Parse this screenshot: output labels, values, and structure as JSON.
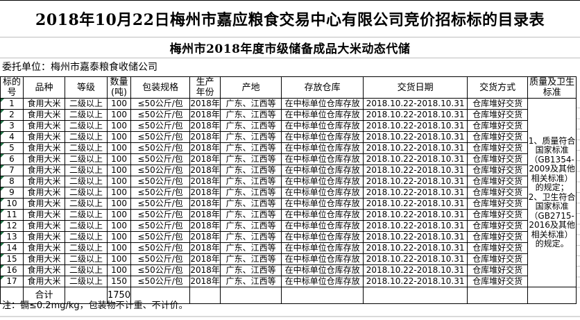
{
  "title": "2018年10月22日梅州市嘉应粮食交易中心有限公司竞价招标标的目录表",
  "subtitle": "梅州市2018年度市级储备成品大米动态代储",
  "client": "委托单位：梅州市嘉泰粮食收储公司",
  "table": {
    "headers": [
      "标的\n号",
      "品种",
      "等级",
      "数量\n(吨)",
      "包装规格",
      "生产\n年份",
      "产地",
      "存放仓库",
      "交货日期",
      "交货方式",
      "质量及卫生\n标准"
    ],
    "rows": [
      {
        "no": "1",
        "variety": "食用大米",
        "grade": "二级以上",
        "quantity": "100",
        "packaging": "≤50公斤/包",
        "year": "2018年",
        "origin": "广东、江西等",
        "warehouse": "在中标单位仓库存放",
        "delivery_date": "2018.10.22-2018.10.31",
        "delivery_method": "仓库堆好交货"
      },
      {
        "no": "2",
        "variety": "食用大米",
        "grade": "二级以上",
        "quantity": "100",
        "packaging": "≤50公斤/包",
        "year": "2018年",
        "origin": "广东、江西等",
        "warehouse": "在中标单位仓库存放",
        "delivery_date": "2018.10.22-2018.10.31",
        "delivery_method": "仓库堆好交货"
      },
      {
        "no": "3",
        "variety": "食用大米",
        "grade": "二级以上",
        "quantity": "100",
        "packaging": "≤50公斤/包",
        "year": "2018年",
        "origin": "广东、江西等",
        "warehouse": "在中标单位仓库存放",
        "delivery_date": "2018.10.22-2018.10.31",
        "delivery_method": "仓库堆好交货"
      },
      {
        "no": "4",
        "variety": "食用大米",
        "grade": "二级以上",
        "quantity": "100",
        "packaging": "≤50公斤/包",
        "year": "2018年",
        "origin": "广东、江西等",
        "warehouse": "在中标单位仓库存放",
        "delivery_date": "2018.10.22-2018.10.31",
        "delivery_method": "仓库堆好交货"
      },
      {
        "no": "5",
        "variety": "食用大米",
        "grade": "二级以上",
        "quantity": "100",
        "packaging": "≤50公斤/包",
        "year": "2018年",
        "origin": "广东、江西等",
        "warehouse": "在中标单位仓库存放",
        "delivery_date": "2018.10.22-2018.10.31",
        "delivery_method": "仓库堆好交货"
      },
      {
        "no": "6",
        "variety": "食用大米",
        "grade": "二级以上",
        "quantity": "100",
        "packaging": "≤50公斤/包",
        "year": "2018年",
        "origin": "广东、江西等",
        "warehouse": "在中标单位仓库存放",
        "delivery_date": "2018.10.22-2018.10.31",
        "delivery_method": "仓库堆好交货"
      },
      {
        "no": "7",
        "variety": "食用大米",
        "grade": "二级以上",
        "quantity": "100",
        "packaging": "≤50公斤/包",
        "year": "2018年",
        "origin": "广东、江西等",
        "warehouse": "在中标单位仓库存放",
        "delivery_date": "2018.10.22-2018.10.31",
        "delivery_method": "仓库堆好交货"
      },
      {
        "no": "8",
        "variety": "食用大米",
        "grade": "二级以上",
        "quantity": "100",
        "packaging": "≤50公斤/包",
        "year": "2018年",
        "origin": "广东、江西等",
        "warehouse": "在中标单位仓库存放",
        "delivery_date": "2018.10.22-2018.10.31",
        "delivery_method": "仓库堆好交货"
      },
      {
        "no": "9",
        "variety": "食用大米",
        "grade": "二级以上",
        "quantity": "100",
        "packaging": "≤50公斤/包",
        "year": "2018年",
        "origin": "广东、江西等",
        "warehouse": "在中标单位仓库存放",
        "delivery_date": "2018.10.22-2018.10.31",
        "delivery_method": "仓库堆好交货"
      },
      {
        "no": "10",
        "variety": "食用大米",
        "grade": "二级以上",
        "quantity": "100",
        "packaging": "≤50公斤/包",
        "year": "2018年",
        "origin": "广东、江西等",
        "warehouse": "在中标单位仓库存放",
        "delivery_date": "2018.10.22-2018.10.31",
        "delivery_method": "仓库堆好交货"
      },
      {
        "no": "11",
        "variety": "食用大米",
        "grade": "二级以上",
        "quantity": "100",
        "packaging": "≤50公斤/包",
        "year": "2018年",
        "origin": "广东、江西等",
        "warehouse": "在中标单位仓库存放",
        "delivery_date": "2018.10.22-2018.10.31",
        "delivery_method": "仓库堆好交货"
      },
      {
        "no": "12",
        "variety": "食用大米",
        "grade": "二级以上",
        "quantity": "100",
        "packaging": "≤50公斤/包",
        "year": "2018年",
        "origin": "广东、江西等",
        "warehouse": "在中标单位仓库存放",
        "delivery_date": "2018.10.22-2018.10.31",
        "delivery_method": "仓库堆好交货"
      },
      {
        "no": "13",
        "variety": "食用大米",
        "grade": "二级以上",
        "quantity": "100",
        "packaging": "≤50公斤/包",
        "year": "2018年",
        "origin": "广东、江西等",
        "warehouse": "在中标单位仓库存放",
        "delivery_date": "2018.10.22-2018.10.31",
        "delivery_method": "仓库堆好交货"
      },
      {
        "no": "14",
        "variety": "食用大米",
        "grade": "二级以上",
        "quantity": "100",
        "packaging": "≤50公斤/包",
        "year": "2018年",
        "origin": "广东、江西等",
        "warehouse": "在中标单位仓库存放",
        "delivery_date": "2018.10.22-2018.10.31",
        "delivery_method": "仓库堆好交货"
      },
      {
        "no": "15",
        "variety": "食用大米",
        "grade": "二级以上",
        "quantity": "100",
        "packaging": "≤50公斤/包",
        "year": "2018年",
        "origin": "广东、江西等",
        "warehouse": "在中标单位仓库存放",
        "delivery_date": "2018.10.22-2018.10.31",
        "delivery_method": "仓库堆好交货"
      },
      {
        "no": "16",
        "variety": "食用大米",
        "grade": "二级以上",
        "quantity": "100",
        "packaging": "≤50公斤/包",
        "year": "2018年",
        "origin": "广东、江西等",
        "warehouse": "在中标单位仓库存放",
        "delivery_date": "2018.10.22-2018.10.31",
        "delivery_method": "仓库堆好交货"
      },
      {
        "no": "17",
        "variety": "食用大米",
        "grade": "二级以上",
        "quantity": "150",
        "packaging": "≤50公斤/包",
        "year": "2018年",
        "origin": "广东、江西等",
        "warehouse": "在中标单位仓库存放",
        "delivery_date": "2018.10.22-2018.10.31",
        "delivery_method": "仓库堆好交货"
      }
    ],
    "quality_standard": "1、质量符合\n国家标准\n（GB1354-\n2009及其他\n相关标准）\n的规定；\n2、卫生符合\n国家标准\n（GB2715-\n2016及其他\n相关标准）\n的规定。",
    "total_row": {
      "label": "合计",
      "quantity": "1750"
    }
  },
  "note": "注：镉≤0.2mg/kg，包装物不计重、不计价。",
  "colors": {
    "error_triangle_green": "#217346",
    "table_border": "#000000",
    "separator_gray": "#bdbdbd"
  }
}
